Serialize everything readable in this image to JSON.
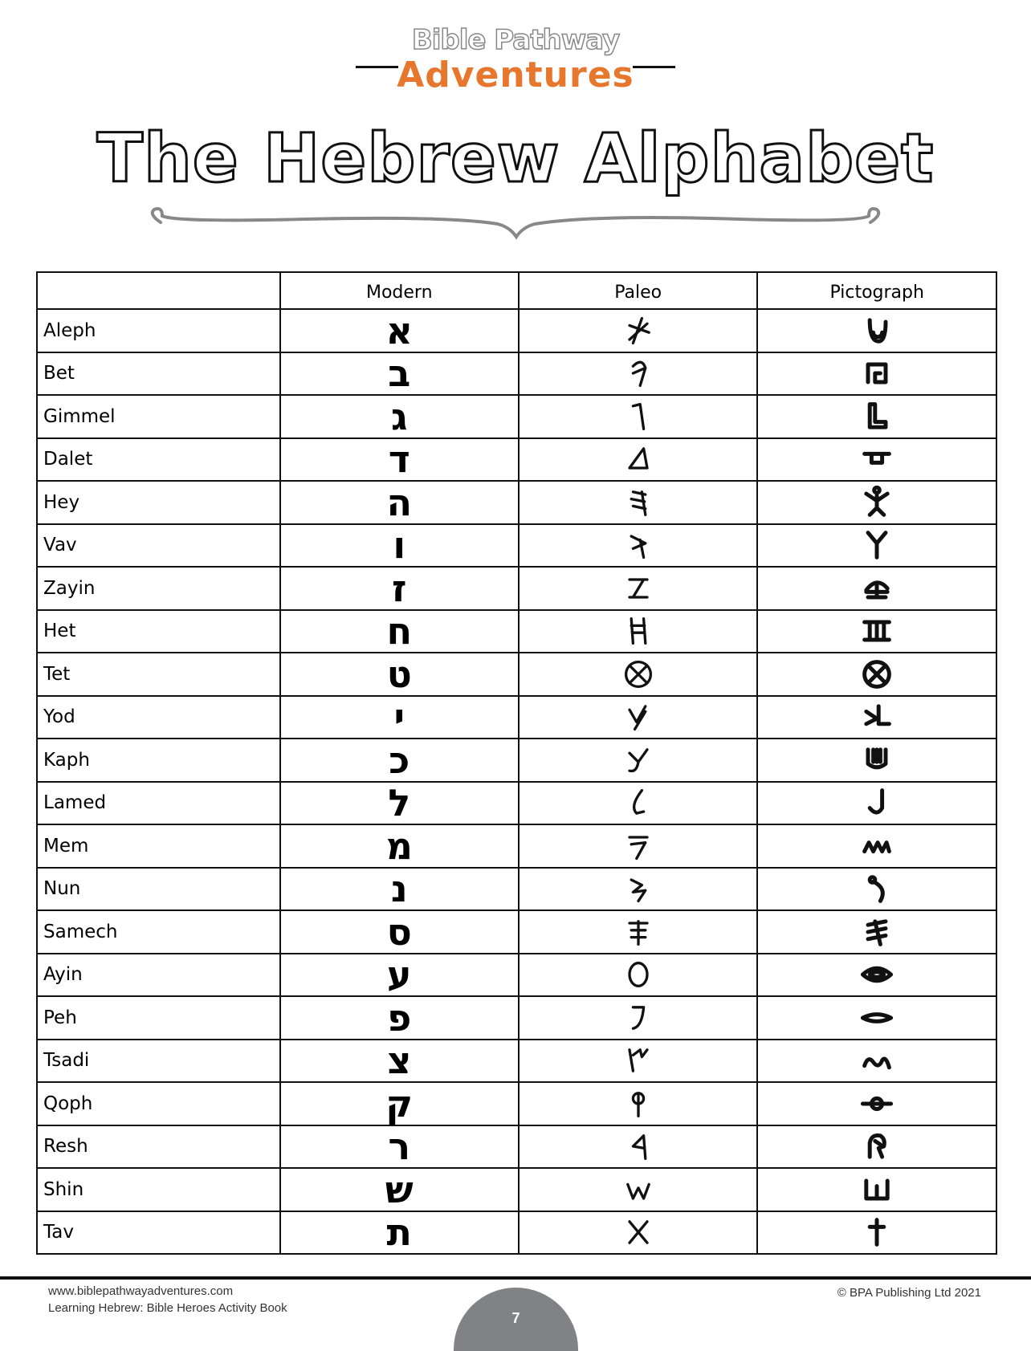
{
  "logo": {
    "line1": "Bible Pathway",
    "line2": "Adventures",
    "accent": "#e8772e"
  },
  "title": "The Hebrew Alphabet",
  "table": {
    "headers": [
      "",
      "Modern",
      "Paleo",
      "Pictograph"
    ],
    "rows": [
      {
        "name": "Aleph",
        "modern": "א",
        "paleo": "paleo-aleph-icon",
        "picto": "ox-head-icon"
      },
      {
        "name": "Bet",
        "modern": "ב",
        "paleo": "paleo-bet-icon",
        "picto": "tent-floorplan-icon"
      },
      {
        "name": "Gimmel",
        "modern": "ג",
        "paleo": "paleo-gimel-icon",
        "picto": "foot-icon"
      },
      {
        "name": "Dalet",
        "modern": "ד",
        "paleo": "paleo-dalet-icon",
        "picto": "door-icon"
      },
      {
        "name": "Hey",
        "modern": "ה",
        "paleo": "paleo-hey-icon",
        "picto": "man-arms-raised-icon"
      },
      {
        "name": "Vav",
        "modern": "ו",
        "paleo": "paleo-vav-icon",
        "picto": "tent-peg-icon"
      },
      {
        "name": "Zayin",
        "modern": "ז",
        "paleo": "paleo-zayin-icon",
        "picto": "mattock-icon"
      },
      {
        "name": "Het",
        "modern": "ח",
        "paleo": "paleo-het-icon",
        "picto": "wall-icon"
      },
      {
        "name": "Tet",
        "modern": "ט",
        "paleo": "paleo-tet-icon",
        "picto": "basket-icon"
      },
      {
        "name": "Yod",
        "modern": "י",
        "paleo": "paleo-yod-icon",
        "picto": "arm-hand-icon"
      },
      {
        "name": "Kaph",
        "modern": "כ",
        "paleo": "paleo-kaph-icon",
        "picto": "palm-icon"
      },
      {
        "name": "Lamed",
        "modern": "ל",
        "paleo": "paleo-lamed-icon",
        "picto": "staff-icon"
      },
      {
        "name": "Mem",
        "modern": "מ",
        "paleo": "paleo-mem-icon",
        "picto": "water-icon"
      },
      {
        "name": "Nun",
        "modern": "נ",
        "paleo": "paleo-nun-icon",
        "picto": "seed-icon"
      },
      {
        "name": "Samech",
        "modern": "ס",
        "paleo": "paleo-samech-icon",
        "picto": "thorn-icon"
      },
      {
        "name": "Ayin",
        "modern": "ע",
        "paleo": "paleo-ayin-icon",
        "picto": "eye-icon"
      },
      {
        "name": "Peh",
        "modern": "פ",
        "paleo": "paleo-peh-icon",
        "picto": "mouth-icon"
      },
      {
        "name": "Tsadi",
        "modern": "צ",
        "paleo": "paleo-tsadi-icon",
        "picto": "trail-icon"
      },
      {
        "name": "Qoph",
        "modern": "ק",
        "paleo": "paleo-qoph-icon",
        "picto": "sun-horizon-icon"
      },
      {
        "name": "Resh",
        "modern": "ר",
        "paleo": "paleo-resh-icon",
        "picto": "head-icon"
      },
      {
        "name": "Shin",
        "modern": "ש",
        "paleo": "paleo-shin-icon",
        "picto": "teeth-icon"
      },
      {
        "name": "Tav",
        "modern": "ת",
        "paleo": "paleo-tav-icon",
        "picto": "cross-mark-icon"
      }
    ]
  },
  "footer": {
    "website": "www.biblepathwayadventures.com",
    "book": "Learning Hebrew: Bible Heroes Activity Book",
    "copyright": "© BPA Publishing Ltd 2021",
    "page": "7",
    "page_color": "#808285"
  }
}
